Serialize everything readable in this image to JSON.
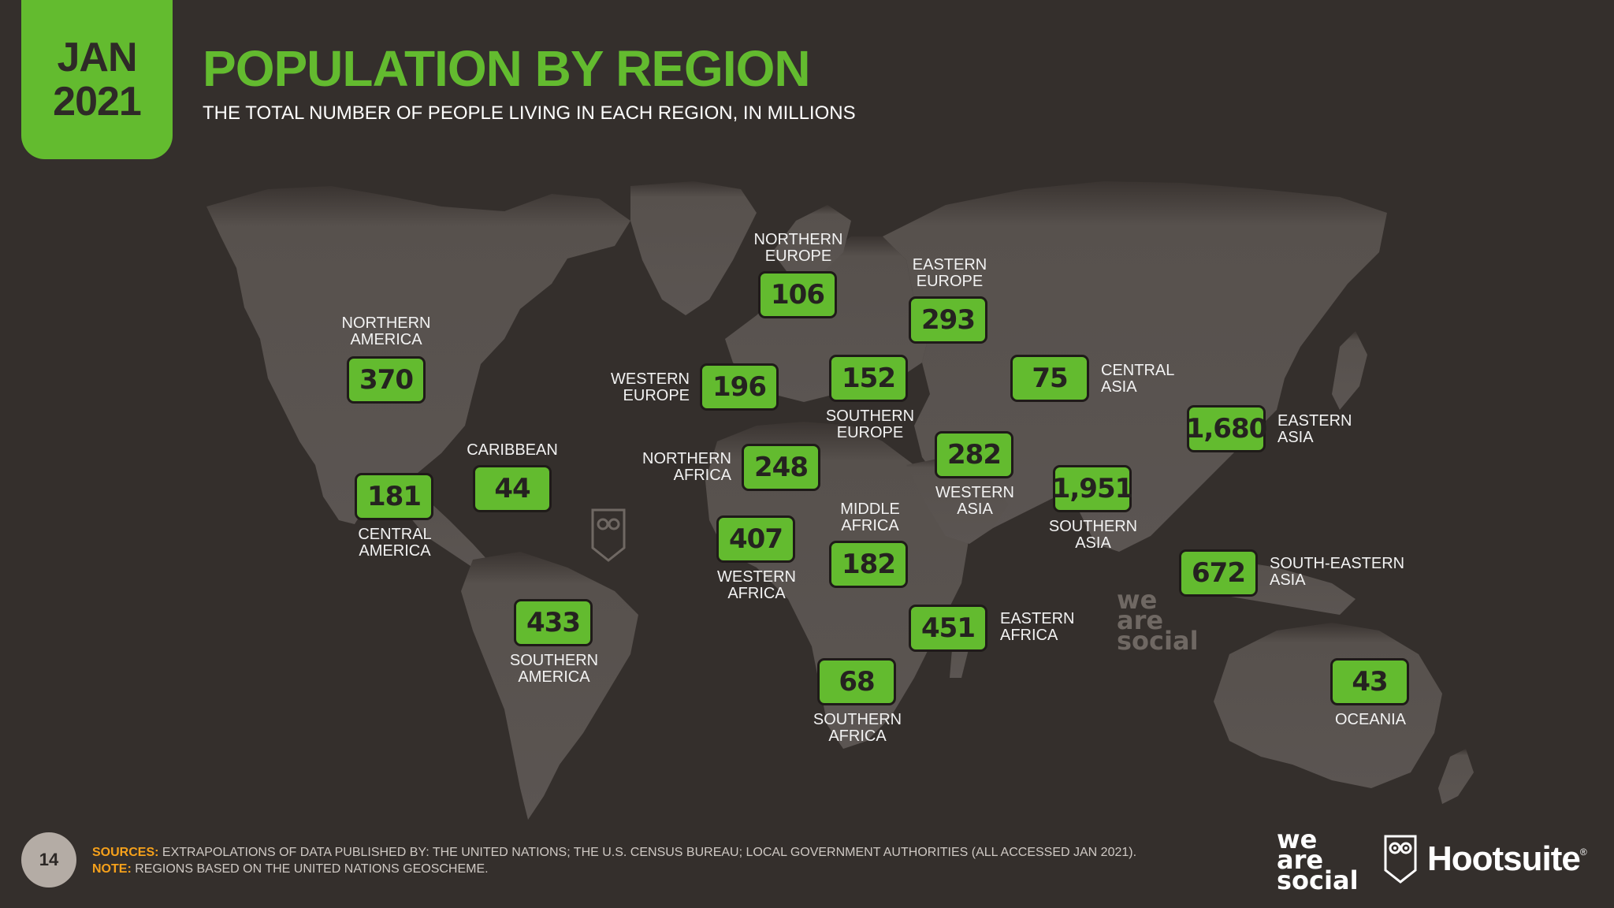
{
  "header": {
    "month": "JAN",
    "year": "2021",
    "title": "POPULATION BY REGION",
    "subtitle": "THE TOTAL NUMBER OF PEOPLE LIVING IN EACH REGION, IN MILLIONS"
  },
  "regions": {
    "northern_america": {
      "line1": "NORTHERN",
      "line2": "AMERICA",
      "value": "370"
    },
    "central_america": {
      "line1": "CENTRAL",
      "line2": "AMERICA",
      "value": "181"
    },
    "caribbean": {
      "line1": "CARIBBEAN",
      "line2": "",
      "value": "44"
    },
    "southern_america": {
      "line1": "SOUTHERN",
      "line2": "AMERICA",
      "value": "433"
    },
    "northern_europe": {
      "line1": "NORTHERN",
      "line2": "EUROPE",
      "value": "106"
    },
    "western_europe": {
      "line1": "WESTERN",
      "line2": "EUROPE",
      "value": "196"
    },
    "southern_europe": {
      "line1": "SOUTHERN",
      "line2": "EUROPE",
      "value": "152"
    },
    "eastern_europe": {
      "line1": "EASTERN",
      "line2": "EUROPE",
      "value": "293"
    },
    "northern_africa": {
      "line1": "NORTHERN",
      "line2": "AFRICA",
      "value": "248"
    },
    "western_africa": {
      "line1": "WESTERN",
      "line2": "AFRICA",
      "value": "407"
    },
    "middle_africa": {
      "line1": "MIDDLE",
      "line2": "AFRICA",
      "value": "182"
    },
    "eastern_africa": {
      "line1": "EASTERN",
      "line2": "AFRICA",
      "value": "451"
    },
    "southern_africa": {
      "line1": "SOUTHERN",
      "line2": "AFRICA",
      "value": "68"
    },
    "western_asia": {
      "line1": "WESTERN",
      "line2": "ASIA",
      "value": "282"
    },
    "central_asia": {
      "line1": "CENTRAL",
      "line2": "ASIA",
      "value": "75"
    },
    "southern_asia": {
      "line1": "SOUTHERN",
      "line2": "ASIA",
      "value": "1,951"
    },
    "eastern_asia": {
      "line1": "EASTERN",
      "line2": "ASIA",
      "value": "1,680"
    },
    "south_eastern_asia": {
      "line1": "SOUTH-EASTERN",
      "line2": "ASIA",
      "value": "672"
    },
    "oceania": {
      "line1": "OCEANIA",
      "line2": "",
      "value": "43"
    }
  },
  "footer": {
    "page_number": "14",
    "sources_key": "SOURCES:",
    "sources_text": "EXTRAPOLATIONS OF DATA PUBLISHED BY: THE UNITED NATIONS; THE U.S. CENSUS BUREAU; LOCAL GOVERNMENT AUTHORITIES (ALL ACCESSED JAN 2021).",
    "note_key": "NOTE:",
    "note_text": "REGIONS BASED ON THE UNITED NATIONS GEOSCHEME."
  },
  "logos": {
    "we_are_social": [
      "we",
      "are",
      "social"
    ],
    "hootsuite": "Hootsuite",
    "registered": "®"
  },
  "colors": {
    "background": "#342f2c",
    "accent_green": "#63bb2f",
    "land": "#5a5451",
    "footer_key": "#f6a11b"
  }
}
